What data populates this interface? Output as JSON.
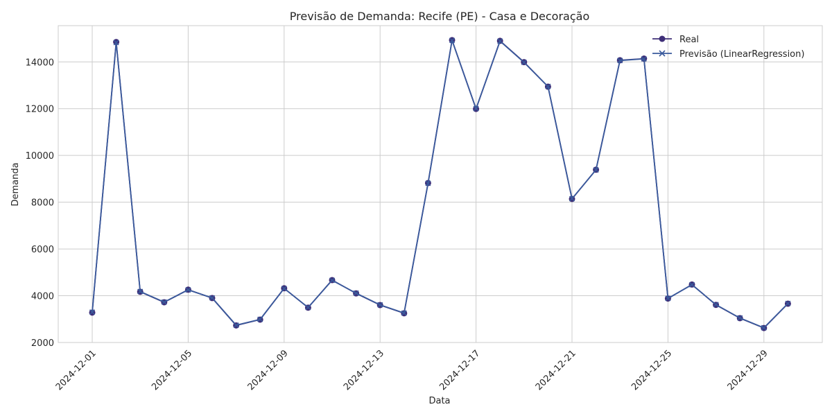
{
  "chart_data": {
    "type": "line",
    "title": "Previsão de Demanda: Recife (PE) - Casa e Decoração",
    "xlabel": "Data",
    "ylabel": "Demanda",
    "x": [
      "2024-12-01",
      "2024-12-02",
      "2024-12-03",
      "2024-12-04",
      "2024-12-05",
      "2024-12-06",
      "2024-12-07",
      "2024-12-08",
      "2024-12-09",
      "2024-12-10",
      "2024-12-11",
      "2024-12-12",
      "2024-12-13",
      "2024-12-14",
      "2024-12-15",
      "2024-12-16",
      "2024-12-17",
      "2024-12-18",
      "2024-12-19",
      "2024-12-20",
      "2024-12-21",
      "2024-12-22",
      "2024-12-23",
      "2024-12-24",
      "2024-12-25",
      "2024-12-26",
      "2024-12-27",
      "2024-12-28",
      "2024-12-29",
      "2024-12-30"
    ],
    "x_ticks": [
      "2024-12-01",
      "2024-12-05",
      "2024-12-09",
      "2024-12-13",
      "2024-12-17",
      "2024-12-21",
      "2024-12-25",
      "2024-12-29"
    ],
    "ylim": [
      2000,
      15550
    ],
    "y_ticks": [
      2000,
      4000,
      6000,
      8000,
      10000,
      12000,
      14000
    ],
    "grid": true,
    "legend_position": "top-right",
    "series": [
      {
        "name": "Real",
        "marker": "circle",
        "color": "#3f2f78",
        "values": [
          3280,
          14850,
          4170,
          3720,
          4260,
          3900,
          2730,
          2980,
          4320,
          3490,
          4670,
          4100,
          3600,
          3250,
          8820,
          14930,
          11990,
          14900,
          13990,
          12940,
          8140,
          9390,
          14070,
          14140,
          3880,
          4480,
          3610,
          3040,
          2620,
          3660
        ]
      },
      {
        "name": "Previsão (LinearRegression)",
        "marker": "x",
        "color": "#3a5a9c",
        "values": [
          3300,
          14830,
          4180,
          3730,
          4250,
          3910,
          2740,
          2990,
          4310,
          3500,
          4660,
          4110,
          3610,
          3260,
          8810,
          14920,
          12000,
          14890,
          13980,
          12950,
          8150,
          9380,
          14060,
          14130,
          3890,
          4470,
          3620,
          3050,
          2630,
          3670
        ]
      }
    ]
  }
}
